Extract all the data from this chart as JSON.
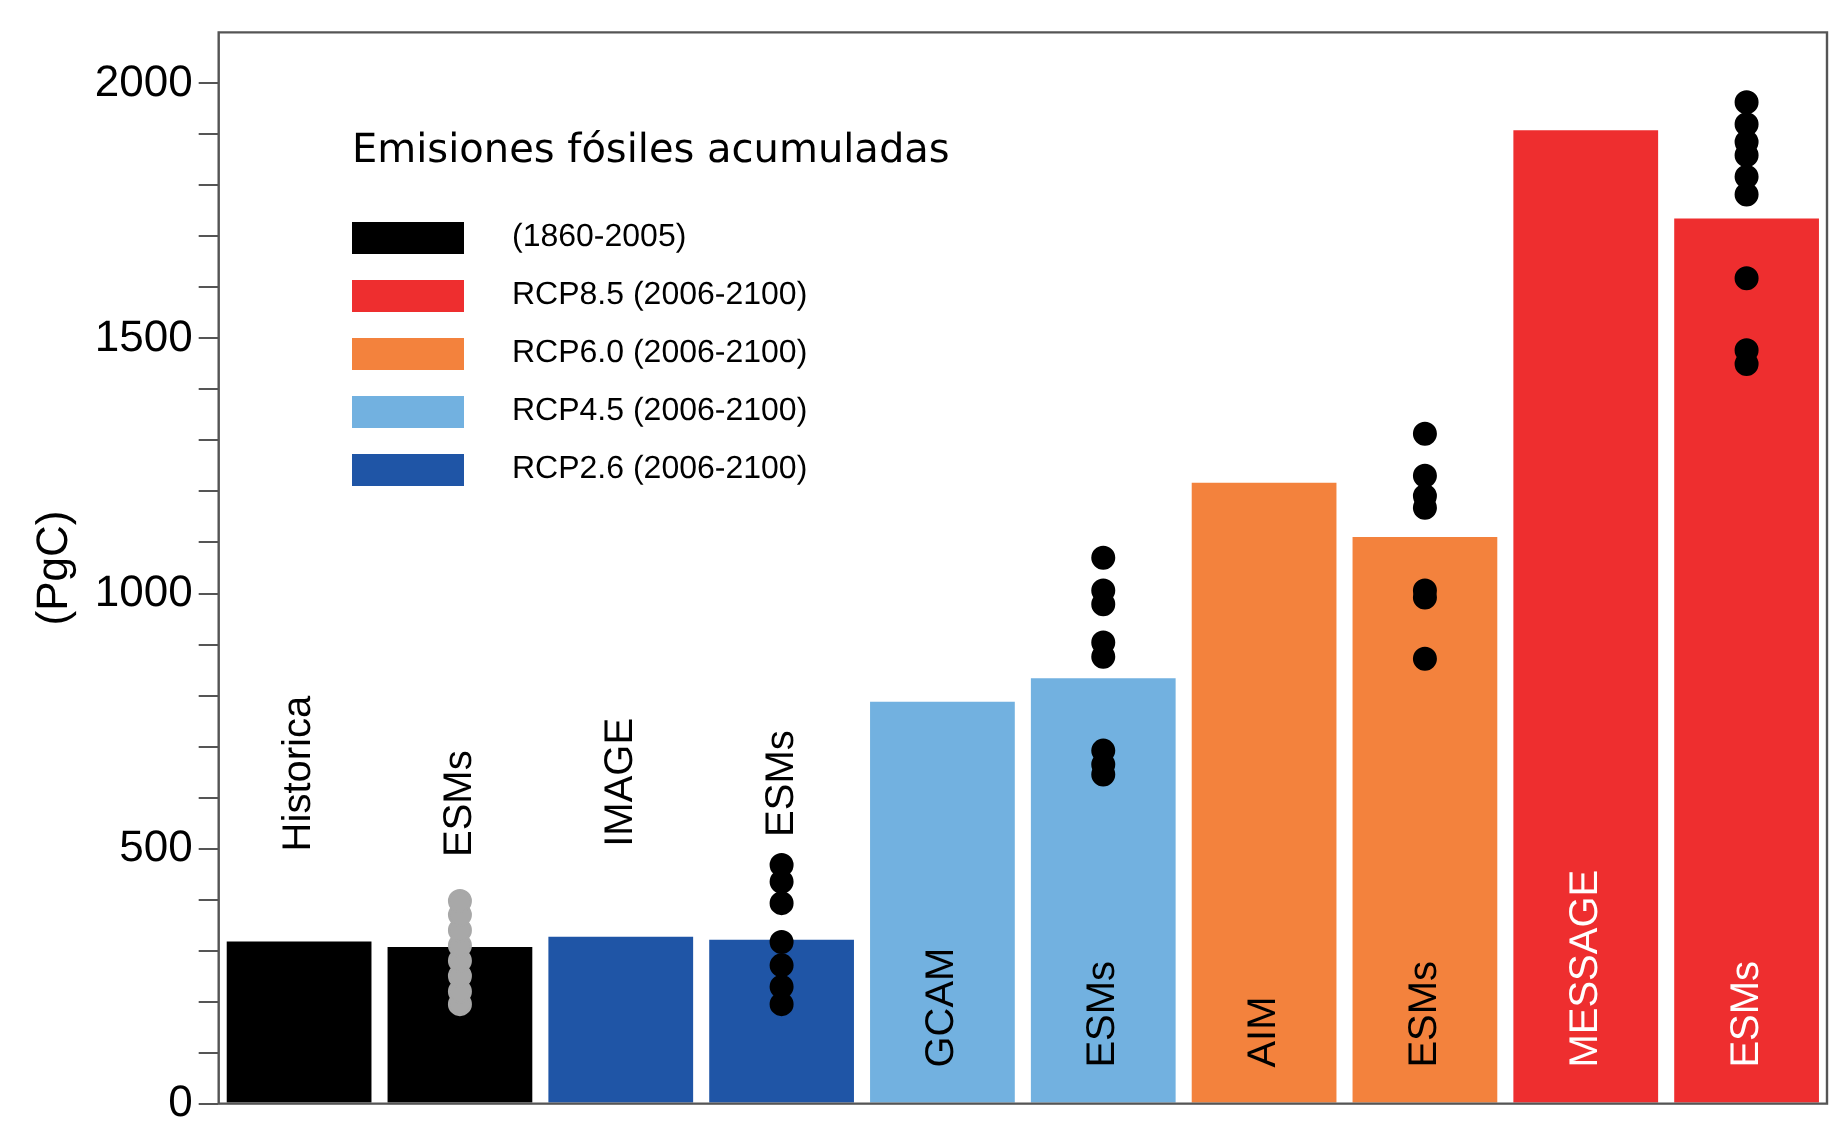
{
  "chart_data": {
    "type": "bar",
    "ylabel": "(PgC)",
    "legend_title": "Emisiones fósiles acumuladas",
    "legend": "top left",
    "stacked": true,
    "tick_labels": "y",
    "grid": false,
    "marker": "circle",
    "categories": [
      "Historica",
      "ESMs",
      "IMAGE",
      "ESMs",
      "GCAM",
      "ESMs",
      "AIM",
      "ESMs",
      "MESSAGE",
      "ESMs"
    ],
    "ylim": [
      0,
      2100
    ],
    "yticks": [
      0,
      {
        "value": 100,
        "label": null
      },
      {
        "value": 200,
        "label": null
      },
      {
        "value": 300,
        "label": null
      },
      {
        "value": 400,
        "label": null
      },
      500,
      {
        "value": 600,
        "label": null
      },
      {
        "value": 700,
        "label": null
      },
      {
        "value": 800,
        "label": null
      },
      {
        "value": 900,
        "label": null
      },
      1000,
      {
        "value": 1100,
        "label": null
      },
      {
        "value": 1200,
        "label": null
      },
      {
        "value": 1300,
        "label": null
      },
      {
        "value": 1400,
        "label": null
      },
      1500,
      {
        "value": 1600,
        "label": null
      },
      {
        "value": 1700,
        "label": null
      },
      {
        "value": 1800,
        "label": null
      },
      {
        "value": 1900,
        "label": null
      },
      2000
    ],
    "series": [
      {
        "name": "(1860-2005)",
        "color": "#000000",
        "values": [
          318,
          307,
          null,
          null,
          null,
          null,
          null,
          null,
          null,
          null
        ]
      },
      {
        "name": "RCP8.5 (2006-2100)",
        "color": "#ee2e2f",
        "values": [
          null,
          null,
          null,
          null,
          null,
          null,
          null,
          null,
          1908,
          1735
        ]
      },
      {
        "name": "RCP6.0 (2006-2100)",
        "color": "#f3823d",
        "values": [
          null,
          null,
          null,
          null,
          null,
          null,
          1217,
          1111,
          null,
          null
        ]
      },
      {
        "name": "RCP4.5 (2006-2100)",
        "color": "#72b1e0",
        "values": [
          null,
          null,
          null,
          null,
          788,
          834,
          null,
          null,
          null,
          null
        ]
      },
      {
        "name": "RCP2.6 (2006-2100)",
        "color": "#1f55a6",
        "values": [
          null,
          null,
          327,
          321,
          null,
          null,
          null,
          null,
          null,
          null
        ]
      },
      {
        "type": "scatter",
        "colors": [
          "#000000",
          "#a8a8a8",
          "#000000",
          "#000000",
          "#000000",
          "#000000",
          "#000000",
          "#000000",
          "#000000",
          "#000000"
        ],
        "values": [
          null,
          397,
          null,
          468,
          null,
          1070,
          null,
          1313,
          null,
          1963
        ]
      },
      {
        "type": "scatter",
        "colors": [
          "#000000",
          "#a8a8a8",
          "#000000",
          "#000000",
          "#000000",
          "#000000",
          "#000000",
          "#000000",
          "#000000",
          "#000000"
        ],
        "values": [
          null,
          370,
          null,
          435,
          null,
          1006,
          null,
          1231,
          null,
          1920
        ]
      },
      {
        "type": "scatter",
        "colors": [
          "#000000",
          "#a8a8a8",
          "#000000",
          "#000000",
          "#000000",
          "#000000",
          "#000000",
          "#000000",
          "#000000",
          "#000000"
        ],
        "values": [
          null,
          340,
          null,
          393,
          null,
          979,
          null,
          1191,
          null,
          1885
        ]
      },
      {
        "type": "scatter",
        "colors": [
          "#000000",
          "#a8a8a8",
          "#000000",
          "#000000",
          "#000000",
          "#000000",
          "#000000",
          "#000000",
          "#000000",
          "#000000"
        ],
        "values": [
          null,
          310,
          null,
          317,
          null,
          904,
          null,
          1168,
          null,
          1859
        ]
      },
      {
        "type": "scatter",
        "colors": [
          "#000000",
          "#a8a8a8",
          "#000000",
          "#000000",
          "#000000",
          "#000000",
          "#000000",
          "#000000",
          "#000000",
          "#000000"
        ],
        "values": [
          null,
          280,
          null,
          271,
          null,
          876,
          null,
          1006,
          null,
          1817
        ]
      },
      {
        "type": "scatter",
        "colors": [
          "#000000",
          "#a8a8a8",
          "#000000",
          "#000000",
          "#000000",
          "#000000",
          "#000000",
          "#000000",
          "#000000",
          "#000000"
        ],
        "values": [
          null,
          250,
          null,
          229,
          null,
          692,
          null,
          992,
          null,
          1782
        ]
      },
      {
        "type": "scatter",
        "colors": [
          "#000000",
          "#a8a8a8",
          "#000000",
          "#000000",
          "#000000",
          "#000000",
          "#000000",
          "#000000",
          "#000000",
          "#000000"
        ],
        "values": [
          null,
          220,
          null,
          195,
          null,
          665,
          null,
          872,
          null,
          1618
        ]
      },
      {
        "type": "scatter",
        "colors": [
          "#000000",
          "#a8a8a8",
          "#000000",
          "#000000",
          "#000000",
          "#000000",
          "#000000",
          "#000000",
          "#000000",
          "#000000"
        ],
        "values": [
          null,
          195,
          null,
          null,
          null,
          645,
          null,
          null,
          null,
          1477
        ]
      },
      {
        "type": "scatter",
        "colors": [
          "#000000",
          "#a8a8a8",
          "#000000",
          "#000000",
          "#000000",
          "#000000",
          "#000000",
          "#000000",
          "#000000",
          "#000000"
        ],
        "values": [
          null,
          null,
          null,
          null,
          null,
          null,
          null,
          null,
          null,
          1450
        ]
      }
    ]
  }
}
